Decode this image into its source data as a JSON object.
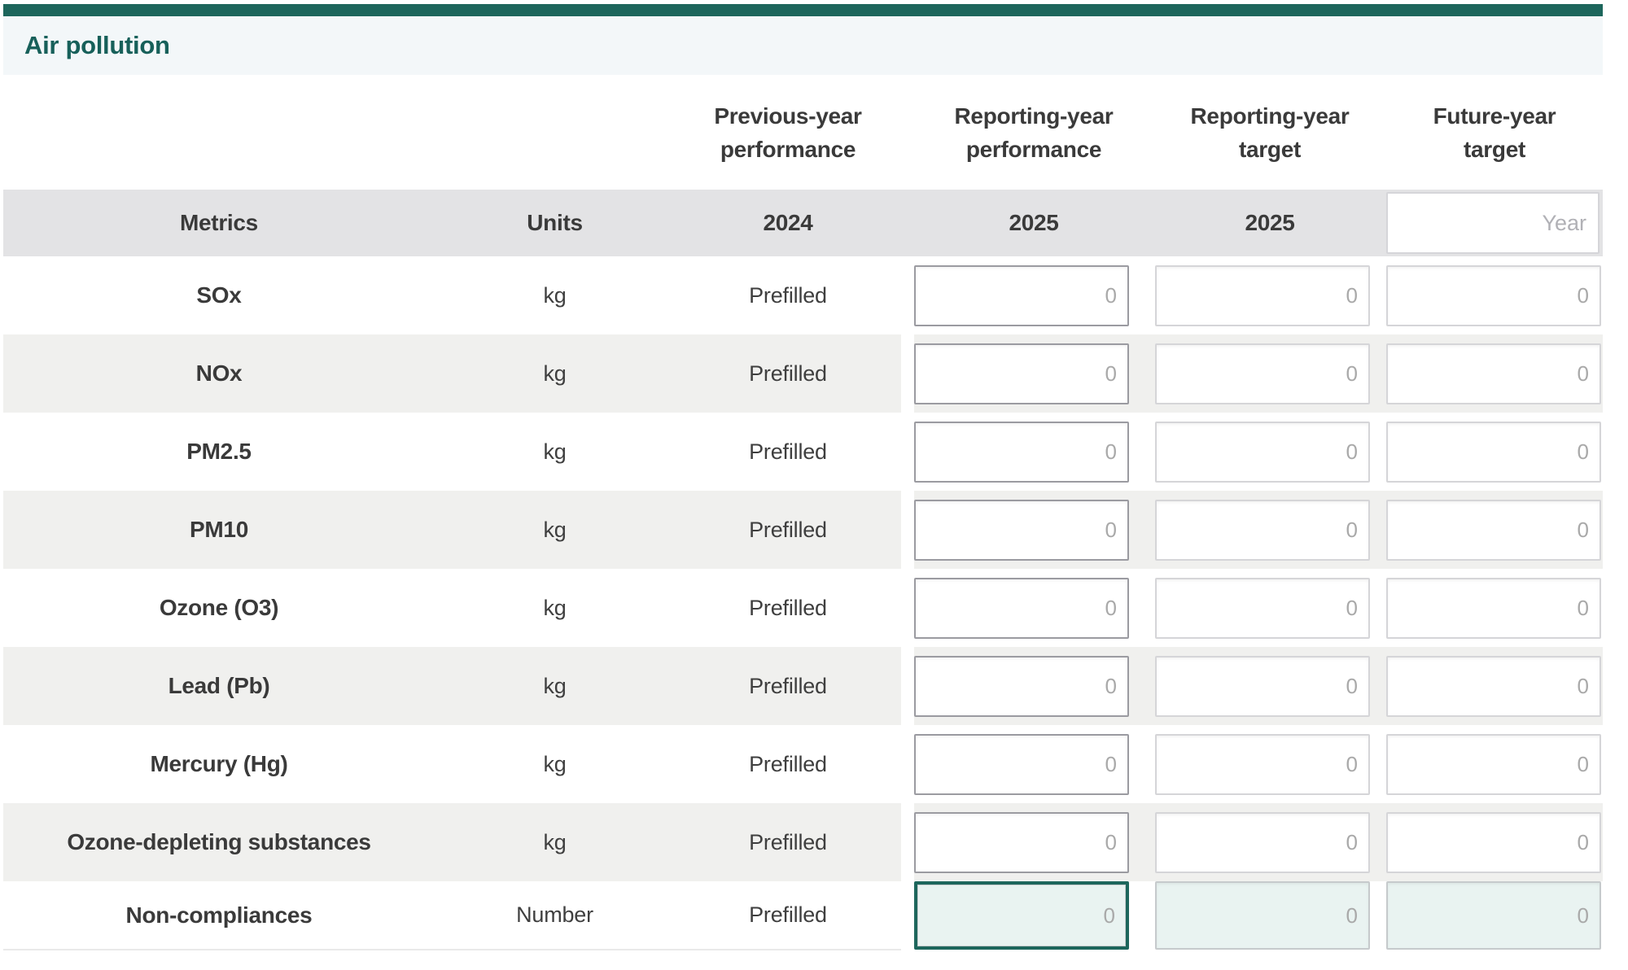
{
  "page": {
    "title": "Air pollution",
    "colors": {
      "accent_teal": "#1d665c",
      "title_band_bg": "#f3f7f9",
      "subheader_bg": "#e3e3e5",
      "row_stripe": "#f0f0ee",
      "highlight_input_bg": "#e9f3f1",
      "focused_border": "#1d665c"
    }
  },
  "table": {
    "group_headers": {
      "previous": {
        "line1": "Previous-year",
        "line2": "performance"
      },
      "reporting_performance": {
        "line1": "Reporting-year",
        "line2": "performance"
      },
      "reporting_target": {
        "line1": "Reporting-year",
        "line2": "target"
      },
      "future_target": {
        "line1": "Future-year",
        "line2": "target"
      }
    },
    "subheader": {
      "metrics_label": "Metrics",
      "units_label": "Units",
      "previous_year": "2024",
      "reporting_performance_year": "2025",
      "reporting_target_year": "2025",
      "future_year_placeholder": "Year",
      "future_year_value": ""
    },
    "rows": [
      {
        "metric": "SOx",
        "unit": "kg",
        "previous": "Prefilled",
        "input_placeholder": "0"
      },
      {
        "metric": "NOx",
        "unit": "kg",
        "previous": "Prefilled",
        "input_placeholder": "0"
      },
      {
        "metric": "PM2.5",
        "unit": "kg",
        "previous": "Prefilled",
        "input_placeholder": "0"
      },
      {
        "metric": "PM10",
        "unit": "kg",
        "previous": "Prefilled",
        "input_placeholder": "0"
      },
      {
        "metric": "Ozone (O3)",
        "unit": "kg",
        "previous": "Prefilled",
        "input_placeholder": "0"
      },
      {
        "metric": "Lead (Pb)",
        "unit": "kg",
        "previous": "Prefilled",
        "input_placeholder": "0"
      },
      {
        "metric": "Mercury (Hg)",
        "unit": "kg",
        "previous": "Prefilled",
        "input_placeholder": "0"
      },
      {
        "metric": "Ozone-depleting substances",
        "unit": "kg",
        "previous": "Prefilled",
        "input_placeholder": "0"
      },
      {
        "metric": "Non-compliances",
        "unit": "Number",
        "previous": "Prefilled",
        "input_placeholder": "0"
      }
    ]
  }
}
